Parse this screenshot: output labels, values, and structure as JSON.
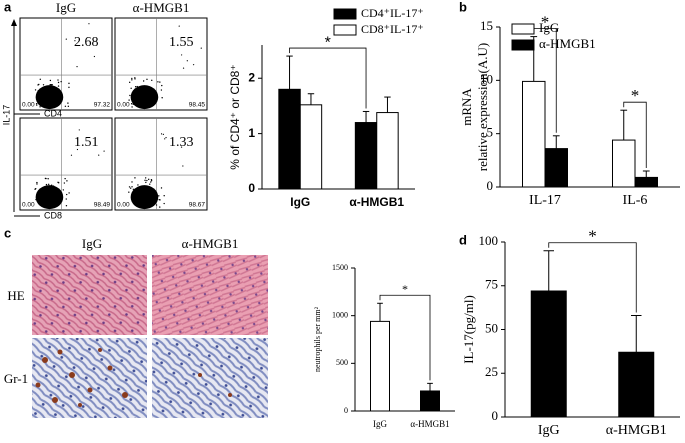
{
  "panel_labels": [
    "a",
    "b",
    "c",
    "d"
  ],
  "flow": {
    "columns": [
      "IgG",
      "α-HMGB1"
    ],
    "y_label": "IL-17",
    "rows": [
      {
        "x_label": "CD4",
        "plots": [
          {
            "tr": "2.68",
            "bl": "0.00",
            "br": "97.32"
          },
          {
            "tr": "1.55",
            "bl": "0.00",
            "br": "98.45"
          }
        ]
      },
      {
        "x_label": "CD8",
        "plots": [
          {
            "tr": "1.51",
            "bl": "0.00",
            "br": "98.49"
          },
          {
            "tr": "1.33",
            "bl": "0.00",
            "br": "98.67"
          }
        ]
      }
    ]
  },
  "histology": {
    "columns": [
      "IgG",
      "α-HMGB1"
    ],
    "rows": [
      "HE",
      "Gr-1"
    ]
  },
  "chart_data": [
    {
      "type": "bar",
      "y_label": [
        "% of CD4⁺ or CD8⁺"
      ],
      "categories": [
        "IgG",
        "α-HMGB1"
      ],
      "series": [
        {
          "name": "CD4⁺IL-17⁺",
          "color": "#000000",
          "values": [
            1.8,
            1.2
          ],
          "errors": [
            0.6,
            0.2
          ]
        },
        {
          "name": "CD8⁺IL-17⁺",
          "color": "#ffffff",
          "values": [
            1.52,
            1.38
          ],
          "errors": [
            0.2,
            0.28
          ]
        }
      ],
      "ylim": [
        0,
        2.6
      ],
      "yticks": [
        0,
        1,
        2
      ],
      "annotations": [
        "*"
      ]
    },
    {
      "type": "bar",
      "y_label": [
        "mRNA",
        "relative expression(A.U)"
      ],
      "categories": [
        "IL-17",
        "IL-6"
      ],
      "series": [
        {
          "name": "IgG",
          "color": "#ffffff",
          "values": [
            9.9,
            4.4
          ],
          "errors": [
            4.2,
            2.8
          ]
        },
        {
          "name": "α-HMGB1",
          "color": "#000000",
          "values": [
            3.6,
            0.9
          ],
          "errors": [
            1.2,
            0.6
          ]
        }
      ],
      "ylim": [
        0,
        15
      ],
      "yticks": [
        0,
        5,
        10,
        15
      ],
      "annotations": [
        "*",
        "*"
      ]
    },
    {
      "type": "bar",
      "y_label": [
        "neutrophils per mm²"
      ],
      "categories": [
        "IgG",
        "α-HMGB1"
      ],
      "series": [
        {
          "colors": [
            "#ffffff",
            "#000000"
          ],
          "values": [
            940,
            210
          ],
          "errors": [
            190,
            80
          ]
        }
      ],
      "ylim": [
        0,
        1500
      ],
      "yticks": [
        0,
        500,
        1000,
        1500
      ],
      "annotations": [
        "*"
      ]
    },
    {
      "type": "bar",
      "y_label": [
        "IL-17(pg/ml)"
      ],
      "categories": [
        "IgG",
        "α-HMGB1"
      ],
      "series": [
        {
          "color": "#000000",
          "values": [
            72,
            37
          ],
          "errors": [
            23,
            21
          ]
        }
      ],
      "ylim": [
        0,
        100
      ],
      "yticks": [
        0,
        25,
        50,
        75,
        100
      ],
      "annotations": [
        "*"
      ]
    }
  ]
}
